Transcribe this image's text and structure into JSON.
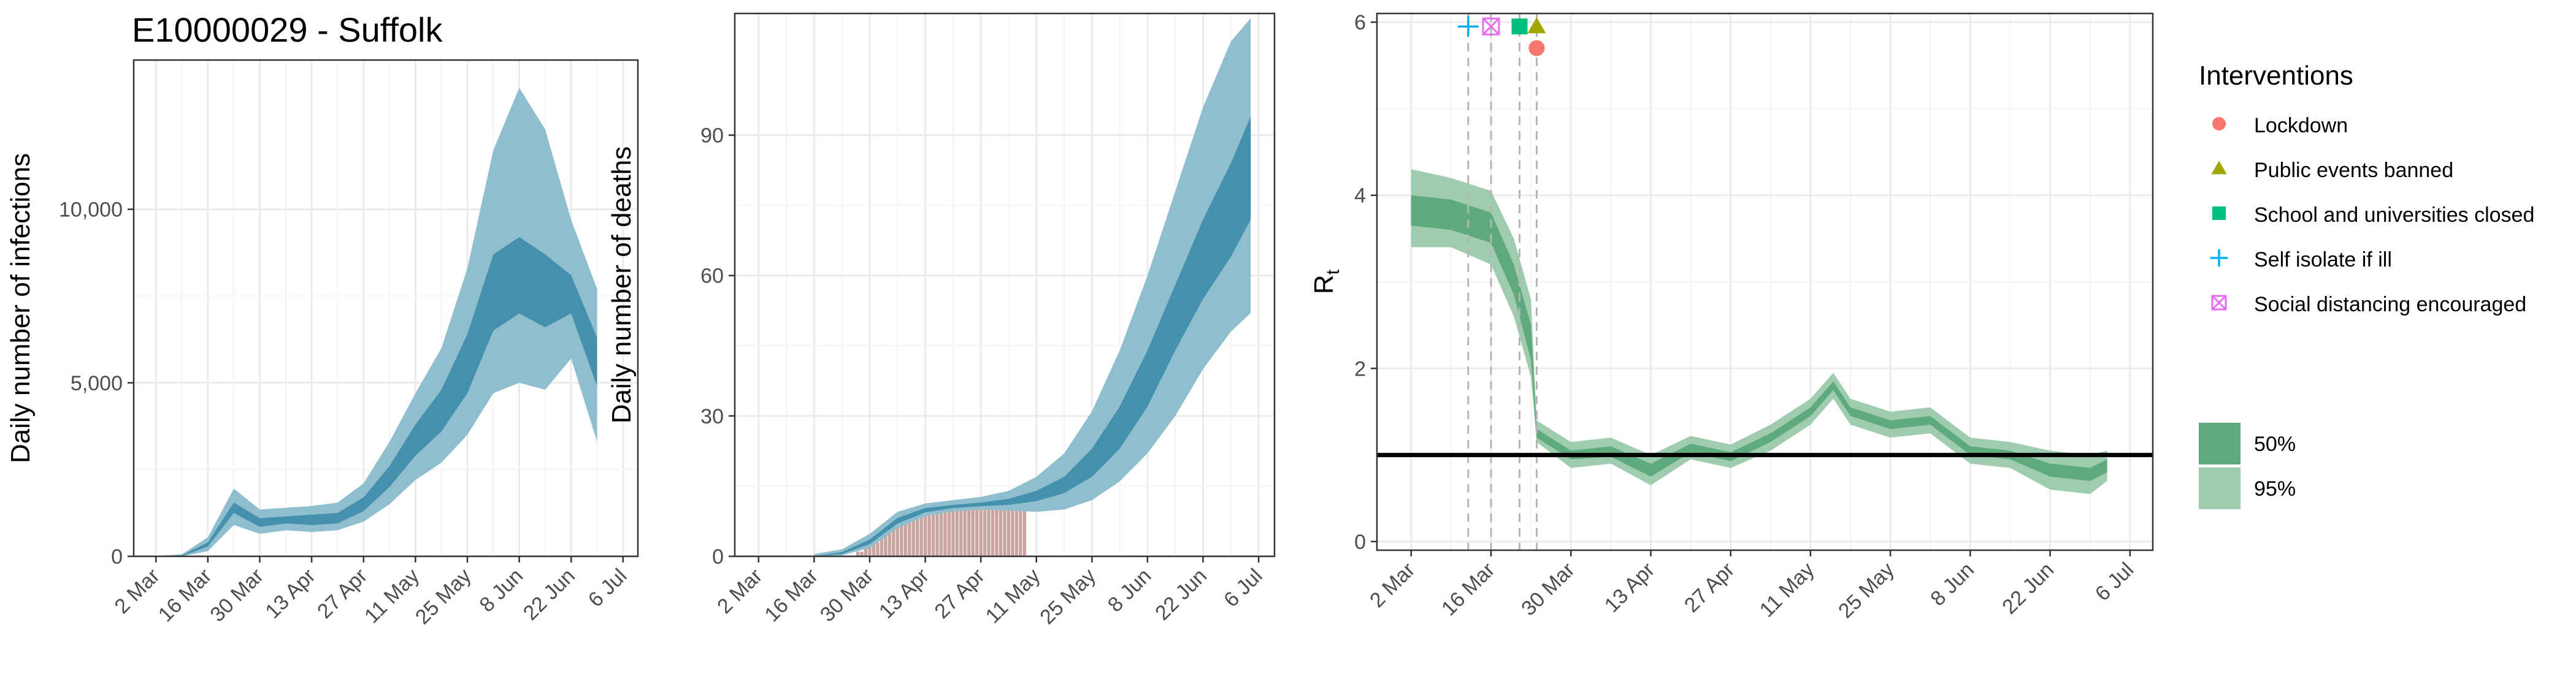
{
  "title": "E10000029 - Suffolk",
  "date_ticks": [
    "2 Mar",
    "16 Mar",
    "30 Mar",
    "13 Apr",
    "27 Apr",
    "11 May",
    "25 May",
    "8 Jun",
    "22 Jun",
    "6 Jul"
  ],
  "legend": {
    "interventions_title": "Interventions",
    "interventions": [
      {
        "label": "Lockdown",
        "shape": "circle",
        "color": "#F8766D"
      },
      {
        "label": "Public events banned",
        "shape": "triangle",
        "color": "#A3A500"
      },
      {
        "label": "School and universities closed",
        "shape": "square",
        "color": "#00BF7D"
      },
      {
        "label": "Self isolate if ill",
        "shape": "plus",
        "color": "#00B0F6"
      },
      {
        "label": "Social distancing encouraged",
        "shape": "boxcross",
        "color": "#E76BF3"
      }
    ],
    "bands": [
      {
        "label": "50%",
        "color": "#5eaa7c"
      },
      {
        "label": "95%",
        "color": "#9fcbae"
      }
    ]
  },
  "colors": {
    "infection_ci95": "#8fbfcf",
    "infection_ci50": "#3d8ba8",
    "rt_ci95": "#9fcbae",
    "rt_ci50": "#5eaa7c",
    "observed_deaths": "#c9a3a0",
    "grid": "#ebebeb",
    "panel_border": "#333333"
  },
  "chart_data": [
    {
      "type": "area",
      "name": "infections",
      "ylabel": "Daily number of infections",
      "yticks": [
        0,
        5000,
        10000
      ],
      "ytick_labels": [
        "0",
        "5,000",
        "10,000"
      ],
      "ylim": [
        0,
        14300
      ],
      "xlim": [
        "2020-02-25",
        "2020-07-10"
      ],
      "bands": [
        {
          "date": "2020-03-02",
          "lo95": 0,
          "lo50": 0,
          "hi50": 0,
          "hi95": 10
        },
        {
          "date": "2020-03-09",
          "lo95": 0,
          "lo50": 10,
          "hi50": 30,
          "hi95": 60
        },
        {
          "date": "2020-03-16",
          "lo95": 150,
          "lo50": 280,
          "hi50": 400,
          "hi95": 550
        },
        {
          "date": "2020-03-23",
          "lo95": 900,
          "lo50": 1250,
          "hi50": 1550,
          "hi95": 1950
        },
        {
          "date": "2020-03-30",
          "lo95": 650,
          "lo50": 850,
          "hi50": 1100,
          "hi95": 1350
        },
        {
          "date": "2020-04-06",
          "lo95": 750,
          "lo50": 950,
          "hi50": 1150,
          "hi95": 1400
        },
        {
          "date": "2020-04-13",
          "lo95": 700,
          "lo50": 900,
          "hi50": 1200,
          "hi95": 1450
        },
        {
          "date": "2020-04-20",
          "lo95": 750,
          "lo50": 950,
          "hi50": 1250,
          "hi95": 1550
        },
        {
          "date": "2020-04-27",
          "lo95": 1000,
          "lo50": 1300,
          "hi50": 1700,
          "hi95": 2100
        },
        {
          "date": "2020-05-04",
          "lo95": 1500,
          "lo50": 2000,
          "hi50": 2600,
          "hi95": 3300
        },
        {
          "date": "2020-05-11",
          "lo95": 2200,
          "lo50": 2900,
          "hi50": 3800,
          "hi95": 4700
        },
        {
          "date": "2020-05-18",
          "lo95": 2700,
          "lo50": 3600,
          "hi50": 4800,
          "hi95": 6000
        },
        {
          "date": "2020-05-25",
          "lo95": 3500,
          "lo50": 4700,
          "hi50": 6400,
          "hi95": 8300
        },
        {
          "date": "2020-06-01",
          "lo95": 4700,
          "lo50": 6500,
          "hi50": 8700,
          "hi95": 11700
        },
        {
          "date": "2020-06-08",
          "lo95": 5000,
          "lo50": 7000,
          "hi50": 9200,
          "hi95": 13500
        },
        {
          "date": "2020-06-15",
          "lo95": 4800,
          "lo50": 6600,
          "hi50": 8700,
          "hi95": 12300
        },
        {
          "date": "2020-06-22",
          "lo95": 5700,
          "lo50": 7000,
          "hi50": 8100,
          "hi95": 9700
        },
        {
          "date": "2020-06-29",
          "lo95": 3300,
          "lo50": 4900,
          "hi50": 6300,
          "hi95": 7700
        }
      ]
    },
    {
      "type": "area",
      "name": "deaths",
      "ylabel": "Daily number of deaths",
      "yticks": [
        0,
        30,
        60,
        90
      ],
      "ytick_labels": [
        "0",
        "30",
        "60",
        "90"
      ],
      "ylim": [
        0,
        116
      ],
      "xlim": [
        "2020-02-25",
        "2020-07-10"
      ],
      "bands": [
        {
          "date": "2020-03-16",
          "lo95": 0,
          "lo50": 0,
          "hi50": 0,
          "hi95": 0.5
        },
        {
          "date": "2020-03-23",
          "lo95": 0.2,
          "lo50": 0.5,
          "hi50": 0.9,
          "hi95": 1.5
        },
        {
          "date": "2020-03-30",
          "lo95": 1.8,
          "lo50": 2.6,
          "hi50": 3.6,
          "hi95": 4.8
        },
        {
          "date": "2020-04-06",
          "lo95": 6.0,
          "lo50": 7.0,
          "hi50": 8.2,
          "hi95": 9.5
        },
        {
          "date": "2020-04-13",
          "lo95": 8.6,
          "lo50": 9.4,
          "hi50": 10.3,
          "hi95": 11.3
        },
        {
          "date": "2020-04-20",
          "lo95": 9.6,
          "lo50": 10.3,
          "hi50": 11.0,
          "hi95": 12.0
        },
        {
          "date": "2020-04-27",
          "lo95": 10.0,
          "lo50": 10.7,
          "hi50": 11.5,
          "hi95": 12.7
        },
        {
          "date": "2020-05-04",
          "lo95": 9.8,
          "lo50": 11.0,
          "hi50": 12.3,
          "hi95": 14.0
        },
        {
          "date": "2020-05-11",
          "lo95": 9.5,
          "lo50": 11.8,
          "hi50": 14.0,
          "hi95": 17.0
        },
        {
          "date": "2020-05-18",
          "lo95": 10.0,
          "lo50": 13.5,
          "hi50": 17.0,
          "hi95": 22.0
        },
        {
          "date": "2020-05-25",
          "lo95": 12.0,
          "lo50": 17.0,
          "hi50": 23.0,
          "hi95": 31.0
        },
        {
          "date": "2020-06-01",
          "lo95": 16.0,
          "lo50": 23.0,
          "hi50": 32.0,
          "hi95": 44.0
        },
        {
          "date": "2020-06-08",
          "lo95": 22.0,
          "lo50": 32.0,
          "hi50": 44.0,
          "hi95": 60.0
        },
        {
          "date": "2020-06-15",
          "lo95": 30.0,
          "lo50": 44.0,
          "hi50": 58.0,
          "hi95": 78.0
        },
        {
          "date": "2020-06-22",
          "lo95": 40.0,
          "lo50": 55.0,
          "hi50": 72.0,
          "hi95": 96.0
        },
        {
          "date": "2020-06-29",
          "lo95": 48.0,
          "lo50": 64.0,
          "hi50": 84.0,
          "hi95": 110.0
        },
        {
          "date": "2020-07-04",
          "lo95": 52.0,
          "lo50": 72.0,
          "hi50": 94.0,
          "hi95": 115.0
        }
      ],
      "observed": {
        "start_date": "2020-03-27",
        "values": [
          1,
          1,
          2,
          2,
          3,
          3,
          4,
          5,
          5,
          6,
          7,
          8,
          8,
          9,
          9,
          10,
          10,
          10,
          10,
          10,
          10,
          10,
          10,
          10,
          10,
          10,
          10,
          10,
          10,
          10,
          10,
          10,
          10,
          10,
          10,
          10,
          10,
          10,
          10,
          10,
          10,
          10,
          10
        ]
      }
    },
    {
      "type": "area",
      "name": "Rt",
      "ylabel": "R",
      "ylabel_sub": "t",
      "yticks": [
        0,
        2,
        4,
        6
      ],
      "ytick_labels": [
        "0",
        "2",
        "4",
        "6"
      ],
      "ylim": [
        -0.1,
        6.1
      ],
      "xlim": [
        "2020-02-25",
        "2020-07-10"
      ],
      "reference_line": 1,
      "bands": [
        {
          "date": "2020-03-02",
          "lo95": 3.4,
          "lo50": 3.65,
          "hi50": 4.0,
          "hi95": 4.3
        },
        {
          "date": "2020-03-09",
          "lo95": 3.4,
          "lo50": 3.6,
          "hi50": 3.95,
          "hi95": 4.2
        },
        {
          "date": "2020-03-16",
          "lo95": 3.2,
          "lo50": 3.45,
          "hi50": 3.8,
          "hi95": 4.05
        },
        {
          "date": "2020-03-20",
          "lo95": 2.6,
          "lo50": 2.85,
          "hi50": 3.2,
          "hi95": 3.5
        },
        {
          "date": "2020-03-23",
          "lo95": 1.9,
          "lo50": 2.1,
          "hi50": 2.5,
          "hi95": 2.8
        },
        {
          "date": "2020-03-24",
          "lo95": 1.15,
          "lo50": 1.2,
          "hi50": 1.3,
          "hi95": 1.4
        },
        {
          "date": "2020-03-30",
          "lo95": 0.85,
          "lo50": 0.95,
          "hi50": 1.05,
          "hi95": 1.15
        },
        {
          "date": "2020-04-06",
          "lo95": 0.9,
          "lo50": 0.98,
          "hi50": 1.1,
          "hi95": 1.2
        },
        {
          "date": "2020-04-13",
          "lo95": 0.65,
          "lo50": 0.75,
          "hi50": 0.9,
          "hi95": 1.0
        },
        {
          "date": "2020-04-20",
          "lo95": 0.95,
          "lo50": 1.03,
          "hi50": 1.13,
          "hi95": 1.22
        },
        {
          "date": "2020-04-27",
          "lo95": 0.85,
          "lo50": 0.93,
          "hi50": 1.03,
          "hi95": 1.12
        },
        {
          "date": "2020-05-04",
          "lo95": 1.05,
          "lo50": 1.15,
          "hi50": 1.25,
          "hi95": 1.35
        },
        {
          "date": "2020-05-11",
          "lo95": 1.35,
          "lo50": 1.45,
          "hi50": 1.55,
          "hi95": 1.65
        },
        {
          "date": "2020-05-15",
          "lo95": 1.65,
          "lo50": 1.75,
          "hi50": 1.85,
          "hi95": 1.95
        },
        {
          "date": "2020-05-18",
          "lo95": 1.35,
          "lo50": 1.45,
          "hi50": 1.55,
          "hi95": 1.65
        },
        {
          "date": "2020-05-25",
          "lo95": 1.2,
          "lo50": 1.3,
          "hi50": 1.4,
          "hi95": 1.5
        },
        {
          "date": "2020-06-01",
          "lo95": 1.25,
          "lo50": 1.35,
          "hi50": 1.45,
          "hi95": 1.55
        },
        {
          "date": "2020-06-08",
          "lo95": 0.9,
          "lo50": 1.0,
          "hi50": 1.1,
          "hi95": 1.2
        },
        {
          "date": "2020-06-15",
          "lo95": 0.85,
          "lo50": 0.95,
          "hi50": 1.05,
          "hi95": 1.15
        },
        {
          "date": "2020-06-22",
          "lo95": 0.6,
          "lo50": 0.75,
          "hi50": 0.9,
          "hi95": 1.05
        },
        {
          "date": "2020-06-29",
          "lo95": 0.55,
          "lo50": 0.7,
          "hi50": 0.85,
          "hi95": 1.0
        },
        {
          "date": "2020-07-02",
          "lo95": 0.7,
          "lo50": 0.8,
          "hi50": 0.95,
          "hi95": 1.05
        }
      ],
      "intervention_markers": [
        {
          "label": "Self isolate if ill",
          "date": "2020-03-12",
          "y": 5.95
        },
        {
          "label": "Social distancing encouraged",
          "date": "2020-03-16",
          "y": 5.95
        },
        {
          "label": "School and universities closed",
          "date": "2020-03-21",
          "y": 5.95
        },
        {
          "label": "Public events banned",
          "date": "2020-03-24",
          "y": 5.95
        },
        {
          "label": "Lockdown",
          "date": "2020-03-24",
          "y": 5.7
        }
      ]
    }
  ]
}
